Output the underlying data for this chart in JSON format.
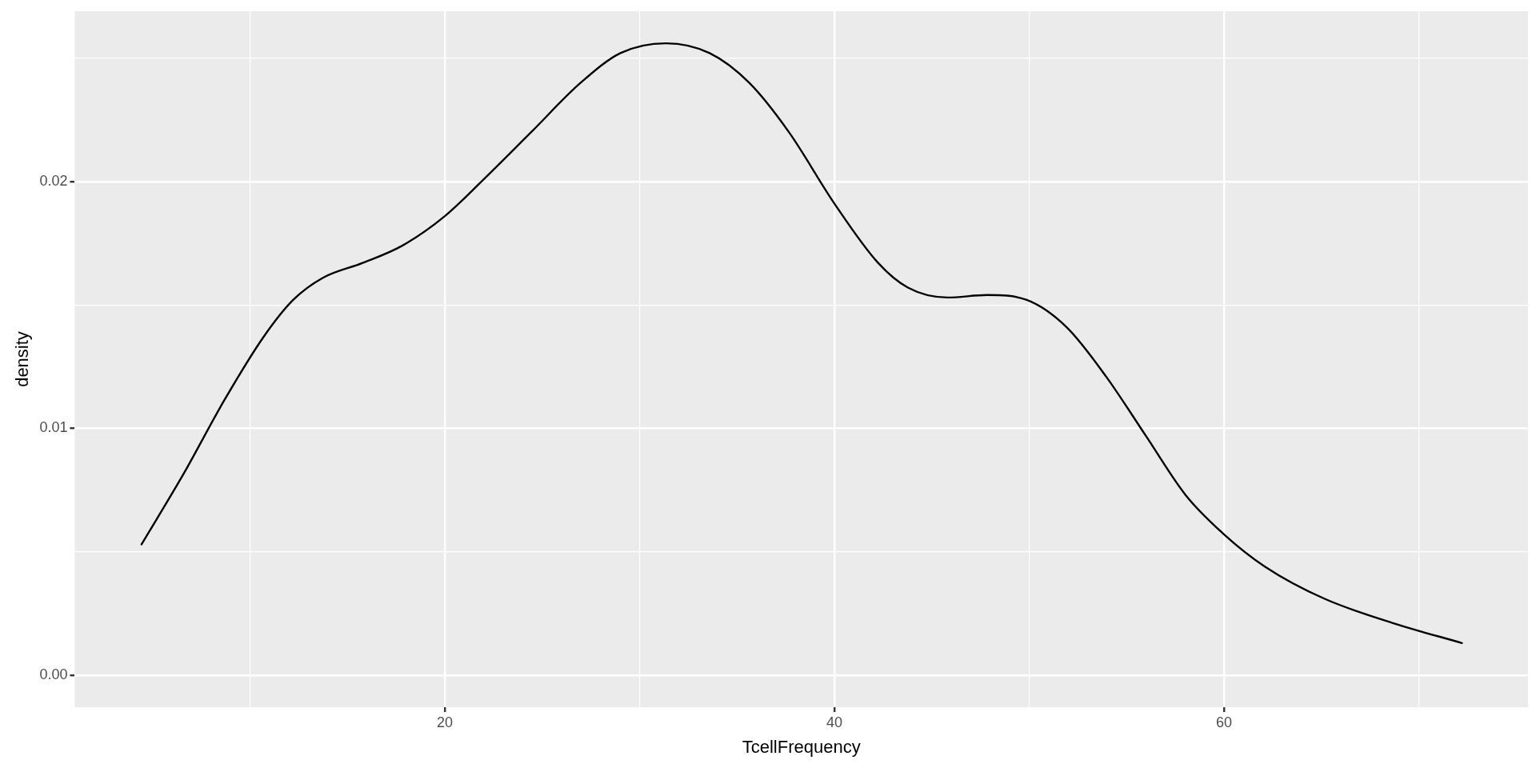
{
  "chart_data": {
    "type": "line",
    "xlabel": "TcellFrequency",
    "ylabel": "density",
    "series": [
      {
        "color": "#000000",
        "x": [
          4.43,
          6.62,
          8.65,
          10.69,
          12.21,
          13.74,
          15.78,
          17.81,
          20,
          21.88,
          24.43,
          26.97,
          29.01,
          31.35,
          33.59,
          35.62,
          37.66,
          40,
          42.24,
          43.77,
          45.8,
          47.84,
          49.87,
          51.91,
          53.94,
          55.98,
          58.02,
          60,
          62.09,
          65.14,
          68.7,
          72.21
        ],
        "values": [
          0.0053,
          0.0082,
          0.0111,
          0.0137,
          0.0152,
          0.0161,
          0.0167,
          0.0174,
          0.0186,
          0.02,
          0.022,
          0.024,
          0.0252,
          0.0256,
          0.0252,
          0.024,
          0.022,
          0.0191,
          0.0167,
          0.0157,
          0.0153,
          0.0154,
          0.0152,
          0.0141,
          0.0121,
          0.0097,
          0.0073,
          0.0057,
          0.0044,
          0.0031,
          0.0021,
          0.0013
        ]
      }
    ],
    "xlim": [
      1,
      75.6
    ],
    "ylim": [
      -0.0013,
      0.0269
    ],
    "xticks": [
      {
        "value": 10,
        "label": null
      },
      20,
      {
        "value": 30,
        "label": null
      },
      40,
      {
        "value": 50,
        "label": null
      },
      60,
      {
        "value": 70,
        "label": null
      }
    ],
    "yticks": [
      {
        "value": 0,
        "label": "0.00"
      },
      {
        "value": 0.005,
        "label": null
      },
      {
        "value": 0.01,
        "label": "0.01"
      },
      {
        "value": 0.015,
        "label": null
      },
      {
        "value": 0.02,
        "label": "0.02"
      },
      {
        "value": 0.025,
        "label": null
      }
    ],
    "grid": true,
    "legend": false,
    "marker": "none",
    "line_style": "solid"
  }
}
